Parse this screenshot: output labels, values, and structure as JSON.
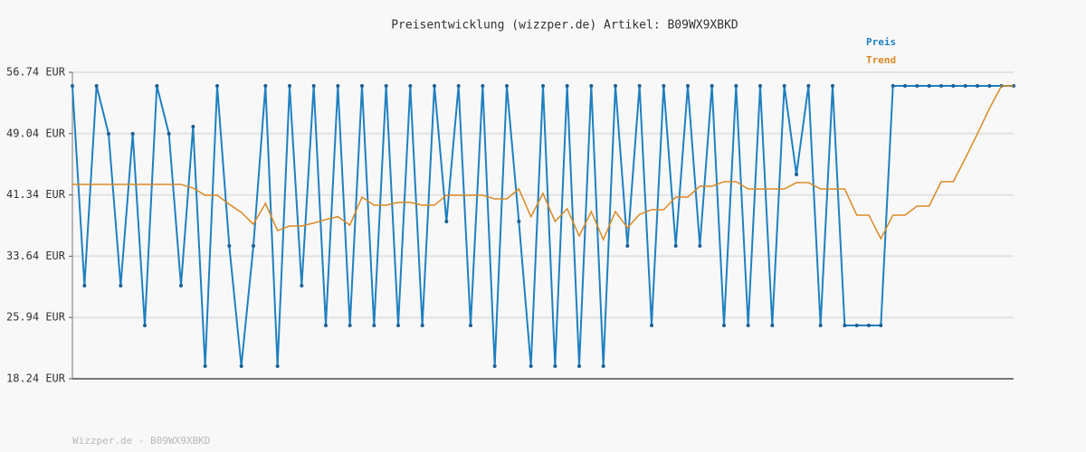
{
  "chart_data": {
    "type": "line",
    "title": "Preisentwicklung (wizzper.de) Artikel: B09WX9XBKD",
    "footer": "Wizzper.de - B09WX9XBKD",
    "categories": [
      null,
      null,
      null,
      null,
      null,
      null,
      null,
      null,
      null,
      null,
      null,
      null,
      null,
      null,
      null,
      null,
      null,
      null,
      null,
      null,
      null,
      null,
      null,
      null,
      null,
      null,
      null,
      null,
      null,
      null,
      null,
      null,
      null,
      null,
      null,
      null,
      null,
      null,
      null,
      null,
      null,
      null,
      null,
      null,
      null,
      null,
      null,
      null,
      null,
      null,
      null,
      null,
      null,
      null,
      null,
      null,
      null,
      null,
      null,
      null,
      null,
      null,
      null,
      null,
      null,
      null,
      null,
      null,
      null,
      null,
      null,
      null,
      null,
      null,
      null,
      null,
      null,
      null,
      null
    ],
    "series": [
      {
        "name": "Preis",
        "color": "#1f80c0",
        "values": [
          55.04,
          29.94,
          55.04,
          49.02,
          29.94,
          49.02,
          24.94,
          55.04,
          49.02,
          29.94,
          49.93,
          19.83,
          55.04,
          34.93,
          19.83,
          34.93,
          55.04,
          19.83,
          55.04,
          29.94,
          55.04,
          24.94,
          55.04,
          24.94,
          55.04,
          24.94,
          55.04,
          24.94,
          55.04,
          24.94,
          55.04,
          38.0,
          55.04,
          24.94,
          55.04,
          19.83,
          55.04,
          38.0,
          19.83,
          55.04,
          19.83,
          55.04,
          19.83,
          55.04,
          19.83,
          55.04,
          34.93,
          55.04,
          24.94,
          55.04,
          34.93,
          55.04,
          34.93,
          55.04,
          24.94,
          55.04,
          24.94,
          55.04,
          24.94,
          55.04,
          43.9,
          55.04,
          24.94,
          55.04,
          24.94,
          24.94,
          24.94,
          24.94,
          55.04,
          55.04,
          55.04,
          55.04,
          55.04,
          55.04,
          55.04,
          55.04,
          55.04,
          55.04,
          55.04
        ]
      },
      {
        "name": "Trend",
        "color": "#d98a25",
        "values": [
          42.66,
          42.66,
          42.66,
          42.66,
          42.66,
          42.66,
          42.66,
          42.66,
          42.66,
          42.66,
          42.2,
          41.3,
          41.3,
          40.16,
          39.14,
          37.66,
          40.27,
          36.86,
          37.43,
          37.43,
          37.8,
          38.25,
          38.6,
          37.55,
          41.07,
          40.05,
          40.05,
          40.4,
          40.4,
          40.05,
          40.05,
          41.3,
          41.3,
          41.3,
          41.3,
          40.84,
          40.84,
          42.09,
          38.6,
          41.52,
          38.0,
          39.6,
          36.18,
          39.25,
          35.73,
          39.25,
          37.2,
          38.9,
          39.48,
          39.48,
          41.07,
          41.07,
          42.43,
          42.43,
          43.0,
          43.0,
          42.09,
          42.09,
          42.09,
          42.09,
          42.88,
          42.88,
          42.09,
          42.09,
          42.09,
          38.8,
          38.8,
          35.84,
          38.8,
          38.8,
          39.93,
          39.93,
          43.0,
          43.0,
          45.95,
          49.02,
          52.2,
          55.04,
          55.04
        ]
      }
    ],
    "ylim": [
      18.24,
      56.74
    ],
    "yticks": [
      {
        "value": 18.24,
        "label": "18.24 EUR"
      },
      {
        "value": 25.94,
        "label": "25.94 EUR"
      },
      {
        "value": 33.64,
        "label": "33.64 EUR"
      },
      {
        "value": 41.34,
        "label": "41.34 EUR"
      },
      {
        "value": 49.04,
        "label": "49.04 EUR"
      },
      {
        "value": 56.74,
        "label": "56.74 EUR"
      }
    ],
    "grid": true,
    "legend": "top-right"
  }
}
